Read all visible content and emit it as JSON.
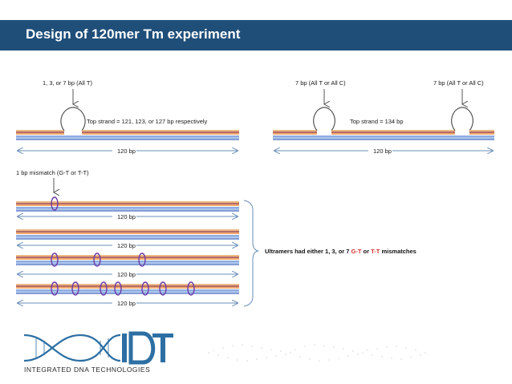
{
  "slide": {
    "title": "Design of 120mer Tm experiment"
  },
  "panel_left": {
    "loop_label": "1, 3, or 7 bp (All T)",
    "strand_label": "Top strand = 121, 123, or 127 bp respectively",
    "length_label": "120 bp"
  },
  "panel_right": {
    "loop_label_1": "7 bp (All T or All C)",
    "loop_label_2": "7 bp (All T or All C)",
    "strand_label": "Top strand = 134 bp",
    "length_label": "120 bp"
  },
  "panel_bottom": {
    "mismatch_label": "1 bp mismatch (G-T or T-T)",
    "length_labels": [
      "120 bp",
      "120 bp",
      "120 bp",
      "120 bp"
    ],
    "summary": {
      "prefix": "Ultramers had either 1, 3, or 7 ",
      "gt": "G-T",
      "mid": " or ",
      "tt": "T-T",
      "suffix": " mismatches"
    }
  },
  "logo": {
    "company": "INTEGRATED DNA TECHNOLOGIES",
    "mark": "IDT"
  },
  "colors": {
    "title_bg": "#1f4e79",
    "strand_top": [
      "#e6a35c",
      "#9a3b3b",
      "#f08c3a"
    ],
    "strand_bottom": [
      "#6a8fd4",
      "#8fb0e8",
      "#5b7fc7"
    ],
    "mismatch_oval": "#6a3aa8",
    "gt": "#d32f2f",
    "tt": "#d32f2f",
    "logo": "#2d6fa3"
  }
}
